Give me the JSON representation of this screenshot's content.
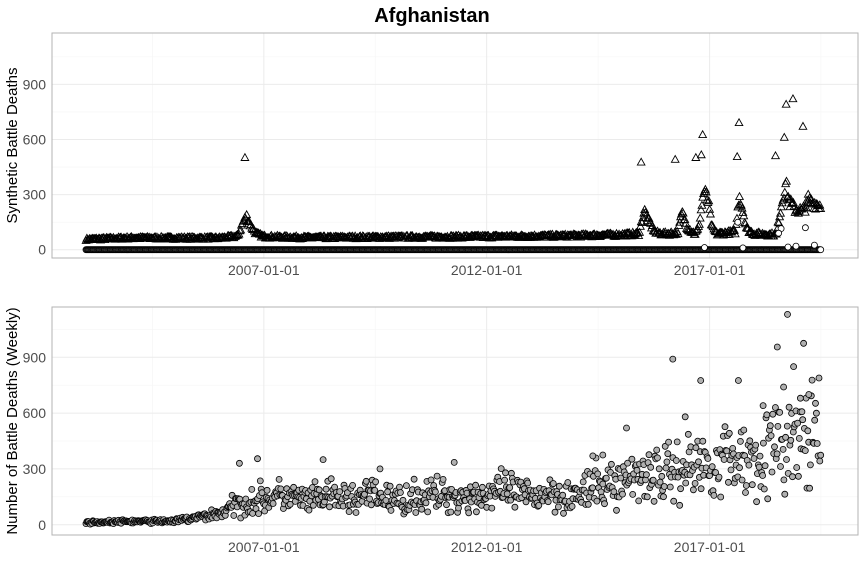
{
  "title": "Afghanistan",
  "chart_data": [
    {
      "type": "scatter",
      "ylabel": "Synthetic Battle Deaths",
      "xlim": [
        "2002-04-01",
        "2020-05-01"
      ],
      "ylim": [
        -45,
        1180
      ],
      "x_ticks": [
        "2007-01-01",
        "2012-01-01",
        "2017-01-01"
      ],
      "y_ticks": [
        0,
        300,
        600,
        900
      ],
      "grid": true,
      "series": [
        {
          "marker": "triangle",
          "date_range": [
            "2003-01-05",
            "2019-06-30"
          ],
          "baseline": [
            [
              "2003-01-05",
              55
            ],
            [
              "2004-01-01",
              63
            ],
            [
              "2005-01-01",
              62
            ],
            [
              "2006-01-01",
              62
            ],
            [
              "2006-06-01",
              72
            ],
            [
              "2006-07-15",
              150
            ],
            [
              "2006-08-15",
              180
            ],
            [
              "2006-09-15",
              130
            ],
            [
              "2006-11-01",
              85
            ],
            [
              "2007-01-01",
              70
            ],
            [
              "2008-01-01",
              64
            ],
            [
              "2009-01-01",
              66
            ],
            [
              "2010-01-01",
              67
            ],
            [
              "2011-01-01",
              68
            ],
            [
              "2012-01-01",
              70
            ],
            [
              "2013-01-01",
              72
            ],
            [
              "2014-01-01",
              75
            ],
            [
              "2015-01-01",
              80
            ],
            [
              "2015-06-01",
              85
            ],
            [
              "2015-07-15",
              210
            ],
            [
              "2015-08-15",
              160
            ],
            [
              "2015-10-15",
              90
            ],
            [
              "2016-01-01",
              85
            ],
            [
              "2016-04-15",
              90
            ],
            [
              "2016-05-20",
              200
            ],
            [
              "2016-07-01",
              120
            ],
            [
              "2016-09-01",
              85
            ],
            [
              "2016-10-01",
              110
            ],
            [
              "2016-11-15",
              320
            ],
            [
              "2016-12-20",
              260
            ],
            [
              "2017-01-20",
              120
            ],
            [
              "2017-03-01",
              85
            ],
            [
              "2017-08-01",
              95
            ],
            [
              "2017-09-01",
              300
            ],
            [
              "2017-10-01",
              210
            ],
            [
              "2017-11-01",
              110
            ],
            [
              "2018-01-01",
              85
            ],
            [
              "2018-07-01",
              80
            ],
            [
              "2018-08-01",
              200
            ],
            [
              "2018-09-15",
              360
            ],
            [
              "2018-10-15",
              260
            ],
            [
              "2018-12-01",
              220
            ],
            [
              "2019-02-01",
              210
            ],
            [
              "2019-04-01",
              260
            ],
            [
              "2019-06-30",
              240
            ]
          ],
          "outliers": [
            [
              "2006-07-30",
              500
            ],
            [
              "2015-06-20",
              475
            ],
            [
              "2016-03-25",
              490
            ],
            [
              "2016-09-10",
              500
            ],
            [
              "2016-10-25",
              515
            ],
            [
              "2016-11-05",
              625
            ],
            [
              "2017-08-30",
              690
            ],
            [
              "2017-08-15",
              505
            ],
            [
              "2018-06-25",
              510
            ],
            [
              "2018-09-05",
              610
            ],
            [
              "2018-09-20",
              790
            ],
            [
              "2018-11-15",
              820
            ],
            [
              "2019-02-05",
              670
            ],
            [
              "2019-03-20",
              300
            ]
          ]
        },
        {
          "marker": "circle",
          "baseline_value": 0,
          "date_range": [
            "2003-01-05",
            "2019-06-30"
          ],
          "extras": [
            [
              "2017-08-20",
              150
            ],
            [
              "2018-08-10",
              115
            ],
            [
              "2018-07-20",
              90
            ],
            [
              "2019-02-25",
              120
            ],
            [
              "2018-12-10",
              20
            ],
            [
              "2018-10-05",
              15
            ],
            [
              "2017-10-01",
              10
            ],
            [
              "2016-11-20",
              12
            ],
            [
              "2019-05-10",
              25
            ]
          ]
        }
      ]
    },
    {
      "type": "scatter",
      "ylabel": "Number of Battle Deaths (Weekly)",
      "xlim": [
        "2002-04-01",
        "2020-05-01"
      ],
      "ylim": [
        -55,
        1170
      ],
      "x_ticks": [
        "2007-01-01",
        "2012-01-01",
        "2017-01-01"
      ],
      "y_ticks": [
        0,
        300,
        600,
        900
      ],
      "grid": true,
      "series": [
        {
          "marker": "circle",
          "date_range": [
            "2003-01-05",
            "2019-06-30"
          ],
          "trend": [
            [
              "2003-01-05",
              12
            ],
            [
              "2004-01-01",
              18
            ],
            [
              "2005-01-01",
              20
            ],
            [
              "2005-06-01",
              35
            ],
            [
              "2006-01-01",
              60
            ],
            [
              "2006-06-01",
              110
            ],
            [
              "2007-01-01",
              140
            ],
            [
              "2007-06-01",
              155
            ],
            [
              "2008-01-01",
              130
            ],
            [
              "2008-06-01",
              150
            ],
            [
              "2009-01-01",
              140
            ],
            [
              "2009-06-01",
              160
            ],
            [
              "2010-01-01",
              130
            ],
            [
              "2010-06-01",
              150
            ],
            [
              "2011-01-01",
              160
            ],
            [
              "2011-06-01",
              150
            ],
            [
              "2012-01-01",
              160
            ],
            [
              "2012-06-01",
              180
            ],
            [
              "2013-01-01",
              150
            ],
            [
              "2013-06-01",
              180
            ],
            [
              "2014-01-01",
              150
            ],
            [
              "2014-06-01",
              200
            ],
            [
              "2015-01-01",
              230
            ],
            [
              "2015-06-01",
              280
            ],
            [
              "2016-01-01",
              270
            ],
            [
              "2016-06-01",
              310
            ],
            [
              "2017-01-01",
              330
            ],
            [
              "2017-06-01",
              360
            ],
            [
              "2018-01-01",
              360
            ],
            [
              "2018-06-01",
              410
            ],
            [
              "2019-01-01",
              450
            ],
            [
              "2019-06-30",
              480
            ]
          ],
          "outliers": [
            [
              "2006-06-15",
              330
            ],
            [
              "2006-11-10",
              355
            ],
            [
              "2008-05-01",
              350
            ],
            [
              "2009-08-10",
              300
            ],
            [
              "2011-04-10",
              335
            ],
            [
              "2014-05-20",
              370
            ],
            [
              "2014-08-10",
              375
            ],
            [
              "2015-02-20",
              520
            ],
            [
              "2016-03-05",
              890
            ],
            [
              "2016-06-15",
              580
            ],
            [
              "2016-10-20",
              775
            ],
            [
              "2017-08-25",
              775
            ],
            [
              "2018-03-15",
              640
            ],
            [
              "2018-07-10",
              955
            ],
            [
              "2018-08-30",
              740
            ],
            [
              "2018-10-01",
              1130
            ],
            [
              "2018-11-20",
              850
            ],
            [
              "2019-02-10",
              975
            ],
            [
              "2019-03-25",
              700
            ],
            [
              "2019-01-15",
              680
            ]
          ]
        }
      ]
    }
  ]
}
